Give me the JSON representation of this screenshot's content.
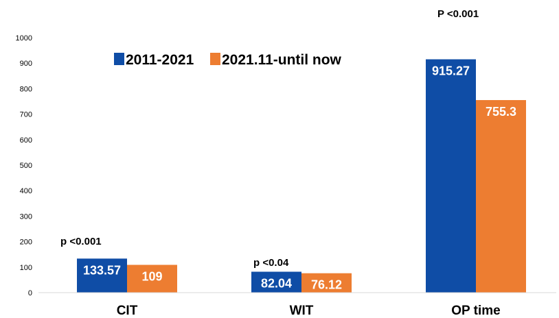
{
  "chart_data": {
    "type": "bar",
    "categories": [
      "CIT",
      "WIT",
      "OP time"
    ],
    "series": [
      {
        "name": "2011-2021",
        "values": [
          133.57,
          82.04,
          915.27
        ],
        "color": "#0F4DA6"
      },
      {
        "name": "2021.11-until now",
        "values": [
          109,
          76.12,
          755.3
        ],
        "color": "#ED7D31"
      }
    ],
    "value_labels": [
      [
        "133.57",
        "82.04",
        "915.27"
      ],
      [
        "109",
        "76.12",
        "755.3"
      ]
    ],
    "annotations": [
      "p <0.001",
      "p <0.04",
      "P <0.001"
    ],
    "yticks": [
      "0",
      "100",
      "200",
      "300",
      "400",
      "500",
      "600",
      "700",
      "800",
      "900",
      "1000"
    ],
    "ylim": [
      0,
      1000
    ],
    "grid": false,
    "legend_position": "top-left"
  }
}
